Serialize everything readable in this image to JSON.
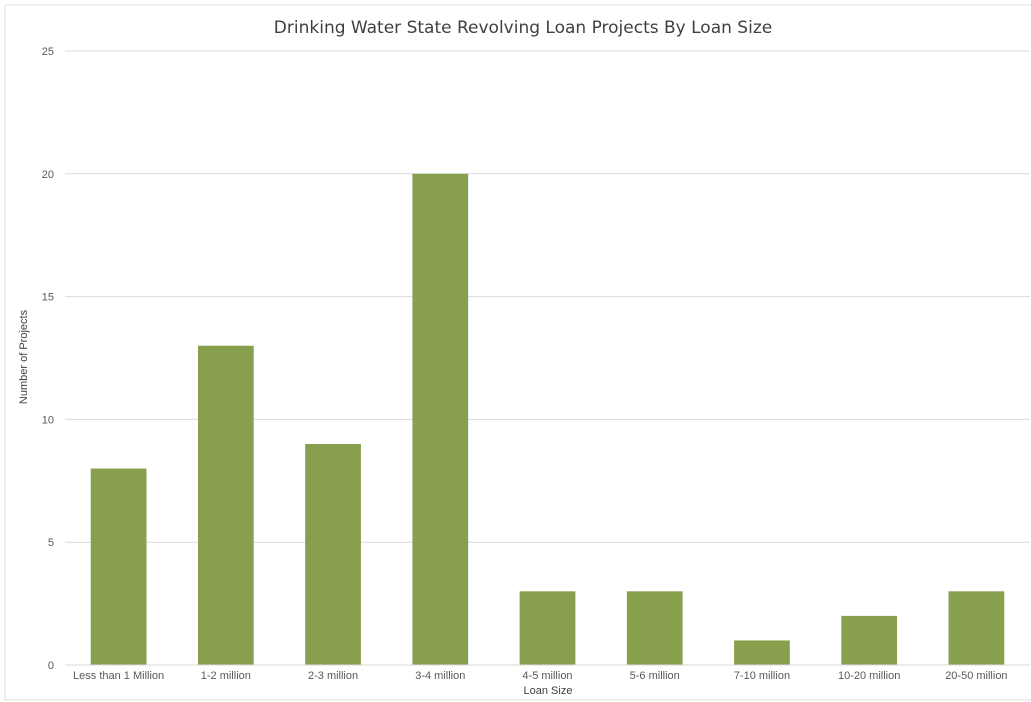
{
  "chart_data": {
    "type": "bar",
    "title": "Drinking Water State Revolving Loan Projects By Loan Size",
    "xlabel": "Loan Size",
    "ylabel": "Number of Projects",
    "categories": [
      "Less than 1 Million",
      "1-2 million",
      "2-3 million",
      "3-4 million",
      "4-5 million",
      "5-6 million",
      "7-10 million",
      "10-20 million",
      "20-50 million"
    ],
    "values": [
      8,
      13,
      9,
      20,
      3,
      3,
      1,
      2,
      3
    ],
    "ylim": [
      0,
      25
    ],
    "yticks": [
      0,
      5,
      10,
      15,
      20,
      25
    ],
    "grid": true,
    "legend": "none",
    "bar_color": "#88a04e",
    "grid_color": "#d9d9d9"
  }
}
